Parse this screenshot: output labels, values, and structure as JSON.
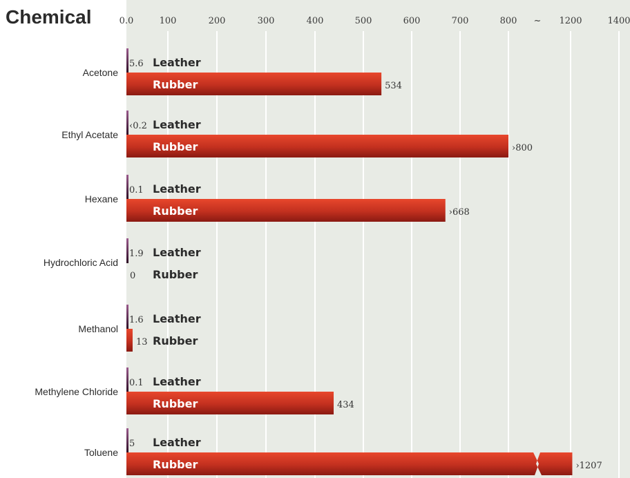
{
  "chart_data": {
    "type": "bar",
    "title": "Chemical",
    "x_ticks": [
      "0.0",
      "100",
      "200",
      "300",
      "400",
      "500",
      "600",
      "700",
      "800",
      "~",
      "1200",
      "1400"
    ],
    "axis_break": {
      "from": 800,
      "to": 1200
    },
    "grid": true,
    "categories": [
      "Acetone",
      "Ethyl Acetate",
      "Hexane",
      "Hydrochloric Acid",
      "Methanol",
      "Methylene Chloride",
      "Toluene"
    ],
    "series": [
      {
        "name": "Leather",
        "values": [
          5.6,
          0.2,
          0.1,
          1.9,
          1.6,
          0.1,
          5
        ],
        "labels": [
          "5.6",
          "‹0.2",
          "0.1",
          "1.9",
          "1.6",
          "0.1",
          "5"
        ]
      },
      {
        "name": "Rubber",
        "values": [
          534,
          800,
          668,
          0,
          13,
          434,
          1207
        ],
        "labels": [
          "534",
          "›800",
          "›668",
          "0",
          "13",
          "434",
          "›1207"
        ]
      }
    ],
    "colors": {
      "background": "#e8ebe5",
      "gridline": "#ffffff",
      "leather": "#6a2a5a",
      "rubber_top": "#e8472c",
      "rubber_bottom": "#8a1a12"
    }
  }
}
